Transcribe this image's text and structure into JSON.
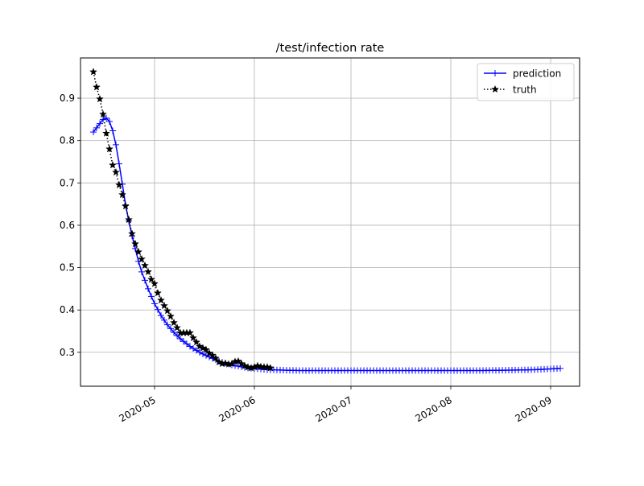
{
  "chart_data": {
    "type": "line",
    "title": "/test/infection rate",
    "xlabel": "",
    "ylabel": "",
    "x_axis_kind": "date",
    "xlim": [
      "2020-04-08",
      "2020-09-10"
    ],
    "ylim": [
      0.22,
      0.995
    ],
    "grid": true,
    "legend_position": "top-right",
    "x_ticks": [
      "2020-05-01",
      "2020-06-01",
      "2020-07-01",
      "2020-08-01",
      "2020-09-01"
    ],
    "x_tick_labels": [
      "2020-05",
      "2020-06",
      "2020-07",
      "2020-08",
      "2020-09"
    ],
    "y_ticks": [
      0.3,
      0.4,
      0.5,
      0.6,
      0.7,
      0.8,
      0.9
    ],
    "y_tick_labels": [
      "0.3",
      "0.4",
      "0.5",
      "0.6",
      "0.7",
      "0.8",
      "0.9"
    ],
    "series": [
      {
        "name": "prediction",
        "color": "#0000ff",
        "line_style": "solid",
        "marker": "plus",
        "start_date": "2020-04-12",
        "end_date": "2020-09-04",
        "anchors": [
          [
            "2020-04-12",
            0.82
          ],
          [
            "2020-04-13",
            0.83
          ],
          [
            "2020-04-14",
            0.84
          ],
          [
            "2020-04-15",
            0.85
          ],
          [
            "2020-04-16",
            0.853
          ],
          [
            "2020-04-17",
            0.845
          ],
          [
            "2020-04-18",
            0.823
          ],
          [
            "2020-04-19",
            0.79
          ],
          [
            "2020-04-20",
            0.745
          ],
          [
            "2020-04-21",
            0.697
          ],
          [
            "2020-04-22",
            0.648
          ],
          [
            "2020-04-23",
            0.61
          ],
          [
            "2020-04-24",
            0.575
          ],
          [
            "2020-04-25",
            0.545
          ],
          [
            "2020-04-26",
            0.515
          ],
          [
            "2020-04-27",
            0.49
          ],
          [
            "2020-04-28",
            0.47
          ],
          [
            "2020-04-29",
            0.45
          ],
          [
            "2020-04-30",
            0.432
          ],
          [
            "2020-05-01",
            0.415
          ],
          [
            "2020-05-03",
            0.387
          ],
          [
            "2020-05-05",
            0.365
          ],
          [
            "2020-05-07",
            0.347
          ],
          [
            "2020-05-09",
            0.332
          ],
          [
            "2020-05-12",
            0.314
          ],
          [
            "2020-05-15",
            0.3
          ],
          [
            "2020-05-18",
            0.289
          ],
          [
            "2020-05-21",
            0.279
          ],
          [
            "2020-05-25",
            0.27
          ],
          [
            "2020-05-30",
            0.263
          ],
          [
            "2020-06-05",
            0.259
          ],
          [
            "2020-06-15",
            0.257
          ],
          [
            "2020-07-15",
            0.257
          ],
          [
            "2020-08-10",
            0.257
          ],
          [
            "2020-08-20",
            0.258
          ],
          [
            "2020-08-27",
            0.259
          ],
          [
            "2020-09-04",
            0.262
          ]
        ]
      },
      {
        "name": "truth",
        "color": "#000000",
        "line_style": "dotted",
        "marker": "star",
        "points": [
          [
            "2020-04-12",
            0.962
          ],
          [
            "2020-04-13",
            0.926
          ],
          [
            "2020-04-14",
            0.898
          ],
          [
            "2020-04-15",
            0.862
          ],
          [
            "2020-04-16",
            0.817
          ],
          [
            "2020-04-17",
            0.78
          ],
          [
            "2020-04-18",
            0.742
          ],
          [
            "2020-04-19",
            0.725
          ],
          [
            "2020-04-20",
            0.695
          ],
          [
            "2020-04-21",
            0.672
          ],
          [
            "2020-04-22",
            0.645
          ],
          [
            "2020-04-23",
            0.613
          ],
          [
            "2020-04-24",
            0.58
          ],
          [
            "2020-04-25",
            0.556
          ],
          [
            "2020-04-26",
            0.537
          ],
          [
            "2020-04-27",
            0.52
          ],
          [
            "2020-04-28",
            0.505
          ],
          [
            "2020-04-29",
            0.49
          ],
          [
            "2020-04-30",
            0.472
          ],
          [
            "2020-05-01",
            0.462
          ],
          [
            "2020-05-02",
            0.44
          ],
          [
            "2020-05-03",
            0.423
          ],
          [
            "2020-05-04",
            0.41
          ],
          [
            "2020-05-05",
            0.398
          ],
          [
            "2020-05-06",
            0.385
          ],
          [
            "2020-05-07",
            0.37
          ],
          [
            "2020-05-08",
            0.358
          ],
          [
            "2020-05-09",
            0.346
          ],
          [
            "2020-05-10",
            0.346
          ],
          [
            "2020-05-11",
            0.346
          ],
          [
            "2020-05-12",
            0.346
          ],
          [
            "2020-05-13",
            0.334
          ],
          [
            "2020-05-14",
            0.324
          ],
          [
            "2020-05-15",
            0.314
          ],
          [
            "2020-05-16",
            0.31
          ],
          [
            "2020-05-17",
            0.306
          ],
          [
            "2020-05-18",
            0.298
          ],
          [
            "2020-05-19",
            0.293
          ],
          [
            "2020-05-20",
            0.286
          ],
          [
            "2020-05-21",
            0.277
          ],
          [
            "2020-05-22",
            0.273
          ],
          [
            "2020-05-23",
            0.274
          ],
          [
            "2020-05-24",
            0.272
          ],
          [
            "2020-05-25",
            0.273
          ],
          [
            "2020-05-26",
            0.278
          ],
          [
            "2020-05-27",
            0.279
          ],
          [
            "2020-05-28",
            0.273
          ],
          [
            "2020-05-29",
            0.268
          ],
          [
            "2020-05-30",
            0.265
          ],
          [
            "2020-05-31",
            0.263
          ],
          [
            "2020-06-01",
            0.265
          ],
          [
            "2020-06-02",
            0.268
          ],
          [
            "2020-06-03",
            0.266
          ],
          [
            "2020-06-04",
            0.265
          ],
          [
            "2020-06-05",
            0.265
          ],
          [
            "2020-06-06",
            0.263
          ]
        ]
      }
    ]
  }
}
